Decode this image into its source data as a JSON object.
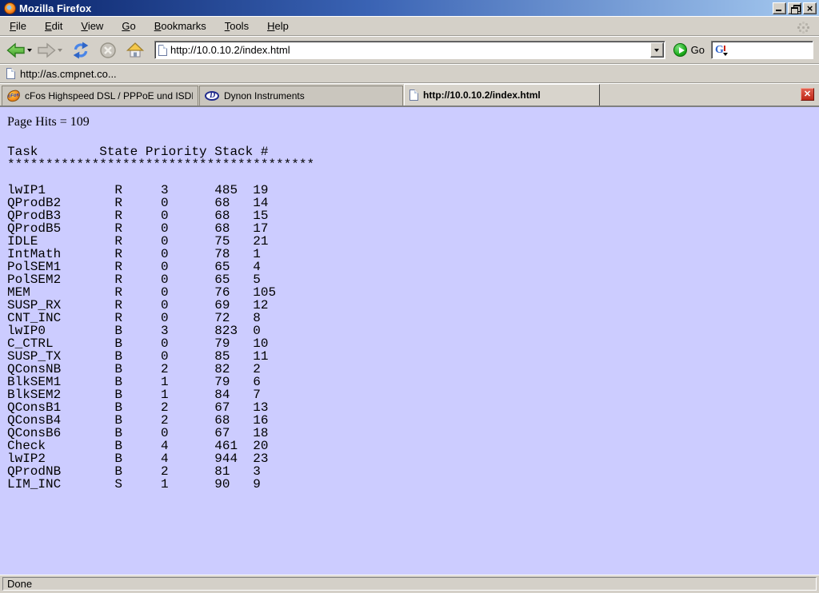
{
  "window": {
    "title": "Mozilla Firefox"
  },
  "menu_bar": {
    "items": [
      "File",
      "Edit",
      "View",
      "Go",
      "Bookmarks",
      "Tools",
      "Help"
    ]
  },
  "nav_toolbar": {
    "url_value": "http://10.0.10.2/index.html",
    "go_label": "Go",
    "search_value": ""
  },
  "bookmarks_bar": {
    "items": [
      "http://as.cmpnet.co..."
    ]
  },
  "tab_bar": {
    "tabs": [
      {
        "label": "cFos Highspeed DSL / PPPoE und ISDN CAP...",
        "icon": "cfos-icon",
        "active": false
      },
      {
        "label": "Dynon Instruments",
        "icon": "dynon-icon",
        "active": false
      },
      {
        "label": "http://10.0.10.2/index.html",
        "icon": "page-icon",
        "active": true
      }
    ]
  },
  "page": {
    "hits_text": "Page Hits = 109",
    "task_table": {
      "columns": [
        "Task",
        "State",
        "Priority",
        "Stack",
        "#"
      ],
      "separator_char": "*",
      "separator_count": 40,
      "rows": [
        {
          "task": "lwIP1",
          "state": "R",
          "priority": 3,
          "stack": 485,
          "num": 19
        },
        {
          "task": "QProdB2",
          "state": "R",
          "priority": 0,
          "stack": 68,
          "num": 14
        },
        {
          "task": "QProdB3",
          "state": "R",
          "priority": 0,
          "stack": 68,
          "num": 15
        },
        {
          "task": "QProdB5",
          "state": "R",
          "priority": 0,
          "stack": 68,
          "num": 17
        },
        {
          "task": "IDLE",
          "state": "R",
          "priority": 0,
          "stack": 75,
          "num": 21
        },
        {
          "task": "IntMath",
          "state": "R",
          "priority": 0,
          "stack": 78,
          "num": 1
        },
        {
          "task": "PolSEM1",
          "state": "R",
          "priority": 0,
          "stack": 65,
          "num": 4
        },
        {
          "task": "PolSEM2",
          "state": "R",
          "priority": 0,
          "stack": 65,
          "num": 5
        },
        {
          "task": "MEM",
          "state": "R",
          "priority": 0,
          "stack": 76,
          "num": 105
        },
        {
          "task": "SUSP_RX",
          "state": "R",
          "priority": 0,
          "stack": 69,
          "num": 12
        },
        {
          "task": "CNT_INC",
          "state": "R",
          "priority": 0,
          "stack": 72,
          "num": 8
        },
        {
          "task": "lwIP0",
          "state": "B",
          "priority": 3,
          "stack": 823,
          "num": 0
        },
        {
          "task": "C_CTRL",
          "state": "B",
          "priority": 0,
          "stack": 79,
          "num": 10
        },
        {
          "task": "SUSP_TX",
          "state": "B",
          "priority": 0,
          "stack": 85,
          "num": 11
        },
        {
          "task": "QConsNB",
          "state": "B",
          "priority": 2,
          "stack": 82,
          "num": 2
        },
        {
          "task": "BlkSEM1",
          "state": "B",
          "priority": 1,
          "stack": 79,
          "num": 6
        },
        {
          "task": "BlkSEM2",
          "state": "B",
          "priority": 1,
          "stack": 84,
          "num": 7
        },
        {
          "task": "QConsB1",
          "state": "B",
          "priority": 2,
          "stack": 67,
          "num": 13
        },
        {
          "task": "QConsB4",
          "state": "B",
          "priority": 2,
          "stack": 68,
          "num": 16
        },
        {
          "task": "QConsB6",
          "state": "B",
          "priority": 0,
          "stack": 67,
          "num": 18
        },
        {
          "task": "Check",
          "state": "B",
          "priority": 4,
          "stack": 461,
          "num": 20
        },
        {
          "task": "lwIP2",
          "state": "B",
          "priority": 4,
          "stack": 944,
          "num": 23
        },
        {
          "task": "QProdNB",
          "state": "B",
          "priority": 2,
          "stack": 81,
          "num": 3
        },
        {
          "task": "LIM_INC",
          "state": "S",
          "priority": 1,
          "stack": 90,
          "num": 9
        }
      ]
    }
  },
  "status_bar": {
    "text": "Done"
  },
  "icons": {
    "window_logo": "firefox-logo",
    "nav": [
      "back-arrow-icon",
      "forward-arrow-icon",
      "reload-icon",
      "stop-icon",
      "home-icon"
    ],
    "url_field": "page-icon",
    "search_engine": "google-g-icon",
    "tab_close": "close-icon"
  },
  "colors": {
    "chrome": "#d4d0c8",
    "page_background": "#ccccff",
    "title_gradient_start": "#0a246a",
    "title_gradient_end": "#a6caf0",
    "tab_close_red": "#c02818"
  }
}
